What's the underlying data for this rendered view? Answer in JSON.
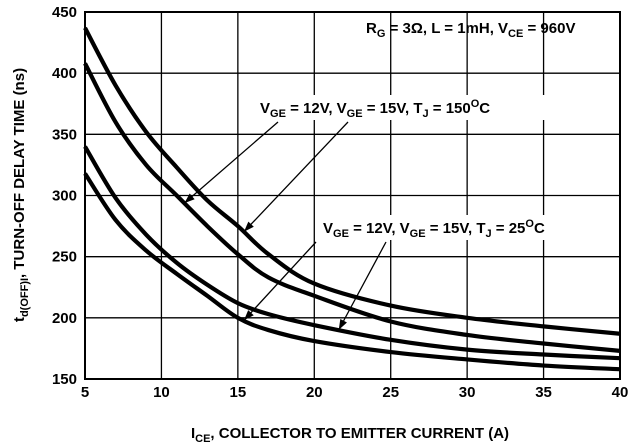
{
  "chart_data": {
    "type": "line",
    "title": "",
    "xlabel": {
      "prefix": "I",
      "sub": "CE",
      "rest": ", COLLECTOR TO EMITTER CURRENT (A)"
    },
    "ylabel": {
      "prefix": "t",
      "sub": "d(OFF)I",
      "rest": ", TURN-OFF DELAY TIME  (ns)"
    },
    "xlim": [
      5,
      40
    ],
    "ylim": [
      150,
      450
    ],
    "xticks": [
      5,
      10,
      15,
      20,
      25,
      30,
      35,
      40
    ],
    "yticks": [
      150,
      200,
      250,
      300,
      350,
      400,
      450
    ],
    "grid": true,
    "series": [
      {
        "x": [
          5,
          7,
          9,
          11,
          13,
          15,
          17,
          20,
          25,
          30,
          35,
          40
        ],
        "values": [
          437,
          390,
          352,
          323,
          296,
          275,
          252,
          228,
          210,
          200,
          193,
          187
        ]
      },
      {
        "x": [
          5,
          7,
          9,
          11,
          13,
          15,
          17,
          20,
          25,
          30,
          35,
          40
        ],
        "values": [
          408,
          360,
          325,
          300,
          275,
          252,
          233,
          218,
          197,
          186,
          179,
          173
        ]
      },
      {
        "x": [
          5,
          7,
          9,
          11,
          13,
          15,
          17,
          20,
          25,
          30,
          35,
          40
        ],
        "values": [
          340,
          298,
          268,
          245,
          227,
          212,
          203,
          194,
          182,
          174,
          170,
          167
        ]
      },
      {
        "x": [
          5,
          7,
          9,
          11,
          13,
          15,
          17,
          20,
          25,
          30,
          35,
          40
        ],
        "values": [
          318,
          280,
          255,
          236,
          218,
          200,
          190,
          181,
          172,
          166,
          161,
          158
        ]
      }
    ],
    "annotations": {
      "conditions": [
        {
          "t": "R",
          "s": "G"
        },
        {
          "t": " = 3Ω, L = 1mH, V"
        },
        {
          "t": "",
          "s": "CE"
        },
        {
          "t": " = 960V"
        }
      ],
      "hot": [
        {
          "t": "V",
          "s": "GE"
        },
        {
          "t": " = 12V, V"
        },
        {
          "t": "",
          "s": "GE"
        },
        {
          "t": " = 15V, T"
        },
        {
          "t": "",
          "s": "J"
        },
        {
          "t": " = 150"
        },
        {
          "t": "",
          "p": "O"
        },
        {
          "t": "C"
        }
      ],
      "cold": [
        {
          "t": "V",
          "s": "GE"
        },
        {
          "t": " = 12V, V"
        },
        {
          "t": "",
          "s": "GE"
        },
        {
          "t": " = 15V, T"
        },
        {
          "t": "",
          "s": "J"
        },
        {
          "t": " = 25"
        },
        {
          "t": "",
          "p": "O"
        },
        {
          "t": "C"
        }
      ]
    }
  }
}
